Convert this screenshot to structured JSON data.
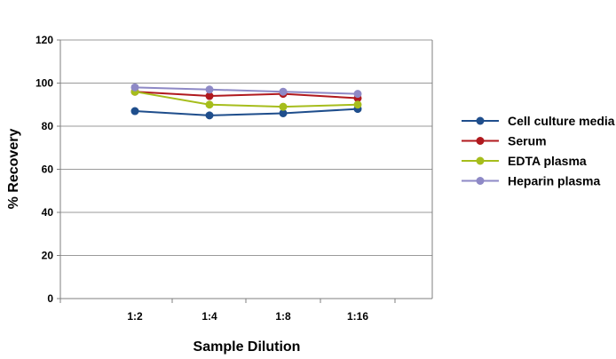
{
  "chart_data": {
    "type": "line",
    "title": "",
    "xlabel": "Sample Dilution",
    "ylabel": "% Recovery",
    "categories": [
      "1:2",
      "1:4",
      "1:8",
      "1:16"
    ],
    "ylim": [
      0,
      120
    ],
    "yticks": [
      0,
      20,
      40,
      60,
      80,
      100,
      120
    ],
    "grid": true,
    "legend_position": "right",
    "series": [
      {
        "name": "Cell culture media",
        "color": "#1f4e8c",
        "values": [
          87,
          85,
          86,
          88
        ]
      },
      {
        "name": "Serum",
        "color": "#b0191e",
        "values": [
          96,
          94,
          95,
          93
        ]
      },
      {
        "name": "EDTA plasma",
        "color": "#a6bd1c",
        "values": [
          96,
          90,
          89,
          90
        ]
      },
      {
        "name": "Heparin plasma",
        "color": "#8e89c6",
        "values": [
          98,
          97,
          96,
          95
        ]
      }
    ]
  }
}
